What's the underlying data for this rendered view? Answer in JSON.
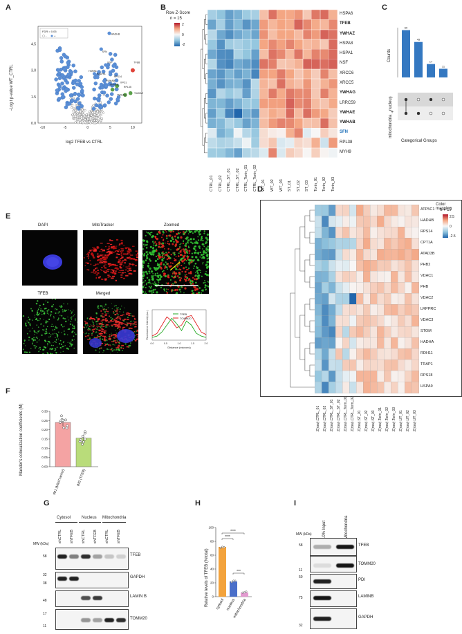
{
  "panels": {
    "A": {
      "letter": "A",
      "xlabel": "log2 TFEB vs CTRL",
      "ylabel": "-Log t p-value WT_CTRL",
      "legend_title": "FDR = 0.05",
      "legend_minus": "-",
      "legend_plus": "+",
      "xticks": [
        "-10",
        "-5",
        "0",
        "5",
        "10"
      ],
      "yticks": [
        "0.0",
        "1.5",
        "3.0",
        "4.5"
      ],
      "labels": [
        "HADHB",
        "SFN",
        "NSF",
        "TFEB",
        "HSPA8",
        "HADHA",
        "RPS14",
        "YWHAB",
        "YWHAE",
        "XPO1",
        "RPL35",
        "YWHAZ",
        "YWHAG"
      ]
    },
    "B": {
      "letter": "B",
      "legend_title": "Row Z-Score",
      "legend_n": "n = 15",
      "legend_ticks": [
        "2",
        "0",
        "-2"
      ],
      "genes": [
        {
          "name": "HSPA6",
          "style": "normal"
        },
        {
          "name": "TFEB",
          "style": "bold"
        },
        {
          "name": "YWHAZ",
          "style": "bold"
        },
        {
          "name": "HSPA8",
          "style": "normal"
        },
        {
          "name": "HSPA1",
          "style": "normal"
        },
        {
          "name": "NSF",
          "style": "normal"
        },
        {
          "name": "XRCC6",
          "style": "normal"
        },
        {
          "name": "XRCC5",
          "style": "normal"
        },
        {
          "name": "YWHAG",
          "style": "bold"
        },
        {
          "name": "LRRC59",
          "style": "normal"
        },
        {
          "name": "YWHAE",
          "style": "bold"
        },
        {
          "name": "YWHAB",
          "style": "bold"
        },
        {
          "name": "SFN",
          "style": "blue"
        },
        {
          "name": "RPL38",
          "style": "normal"
        },
        {
          "name": "MYH9",
          "style": "normal"
        }
      ],
      "columns": [
        "CTRL_01",
        "CTRL_02",
        "CTRL_ST_01",
        "CTRL_ST_02",
        "CTRL_Torin_01",
        "CTRL_Torin_02",
        "WT_01",
        "WT_02",
        "WT_03",
        "ST_01",
        "ST_02",
        "ST_03",
        "Torin_01",
        "Torin_02",
        "Torin_03"
      ]
    },
    "C": {
      "letter": "C",
      "ylabel": "Counts",
      "xlabel": "Categorical Groups",
      "bars": [
        {
          "label": "60",
          "value": 60
        },
        {
          "label": "45",
          "value": 45
        },
        {
          "label": "17",
          "value": 17
        },
        {
          "label": "11",
          "value": 11
        }
      ],
      "set_labels": [
        "nucleus",
        "mitochondria"
      ],
      "minus_sign": "-",
      "plus_sign": "+"
    },
    "D": {
      "letter": "D",
      "legend_title": "Color mapping",
      "legend_n": "n = 17",
      "legend_ticks": [
        "2.5",
        "0",
        "-2.5"
      ],
      "genes": [
        "ATP5C1",
        "HADHB",
        "RPS14",
        "CPT1A",
        "ATAD3B",
        "PHB2",
        "VDAC1",
        "PHB",
        "VDAC2",
        "LRPPRC",
        "VDAC3",
        "STOM",
        "HADHA",
        "RDH11",
        "TRAP1",
        "RPS18",
        "HSPA9"
      ],
      "columns": [
        "Z(row).CTRL_01",
        "Z(row).CTRL_02",
        "Z(row).CTRL_ST_01",
        "Z(row).CTRL_ST_02",
        "Z(row).CTRL_Torin_01",
        "Z(row).CTRL_Torin_02",
        "Z(row).ST_01",
        "Z(row).ST_02",
        "Z(row).ST_03",
        "Z(row).Torin_01",
        "Z(row).Torin_02",
        "Z(row).Torin_03",
        "Z(row).UT_01",
        "Z(row).UT_02",
        "Z(row).UT_03"
      ]
    },
    "E": {
      "letter": "E",
      "titles": [
        "DAPI",
        "MitoTracker",
        "Zoomed",
        "TFEB",
        "Merged"
      ],
      "plot_xlabel": "Distance (microns)",
      "plot_ylabel": "Fluorescence Intensity (a.u.)",
      "legend": [
        "TFEB",
        "TOMM20"
      ],
      "xticks": [
        "0.0",
        "0.5",
        "1.0",
        "1.5",
        "2.0"
      ]
    },
    "F": {
      "letter": "F",
      "ylabel": "Mander's colocalization coefficients (M)",
      "bars": [
        {
          "label": "tM1 (MitoTracker)",
          "value": 0.24,
          "color": "#f4a3a3"
        },
        {
          "label": "tM2 (TFEB)",
          "value": 0.155,
          "color": "#b9dc7a"
        }
      ],
      "yticks": [
        "0.00",
        "0.05",
        "0.10",
        "0.15",
        "0.20",
        "0.25",
        "0.30"
      ]
    },
    "G": {
      "letter": "G",
      "mw_label": "MW (kDa)",
      "groups": [
        "Cytosol",
        "Nucleus",
        "Mitochondria"
      ],
      "lanes": [
        "shCTRL",
        "shTFEB",
        "shCTRL",
        "shTFEB",
        "shCTRL",
        "shTFEB"
      ],
      "rows": [
        {
          "name": "TFEB",
          "mw": [
            "58"
          ]
        },
        {
          "name": "GAPDH",
          "mw": [
            "32",
            "38"
          ]
        },
        {
          "name": "LAMIN B",
          "mw": [
            "48"
          ]
        },
        {
          "name": "TOMM20",
          "mw": [
            "17",
            "11"
          ]
        }
      ]
    },
    "H": {
      "letter": "H",
      "ylabel": "Relative levels of TFEB (%total)",
      "bars": [
        {
          "label": "cytosol",
          "value": 72,
          "color": "#f3a33c"
        },
        {
          "label": "nucleus",
          "value": 22,
          "color": "#4a6fc9"
        },
        {
          "label": "mitochondria",
          "value": 6,
          "color": "#e39ad0"
        }
      ],
      "yticks": [
        "0",
        "20",
        "40",
        "60",
        "80",
        "100"
      ],
      "sig": [
        "****",
        "****",
        "***"
      ]
    },
    "I": {
      "letter": "I",
      "mw_label": "MW (kDa)",
      "lanes": [
        "10% Input",
        "Mitochondria"
      ],
      "rows": [
        {
          "name": "TFEB",
          "mw": [
            "58"
          ]
        },
        {
          "name": "TOMM20",
          "mw": [
            "11"
          ]
        },
        {
          "name": "PDI",
          "mw": [
            "50"
          ]
        },
        {
          "name": "LAMINB",
          "mw": [
            "75"
          ]
        },
        {
          "name": "GAPDH",
          "mw": [
            "32"
          ]
        }
      ]
    }
  },
  "chart_data": [
    {
      "type": "scatter",
      "title": "",
      "xlabel": "log2 TFEB vs CTRL",
      "ylabel": "-Log t p-value WT_CTRL",
      "xlim": [
        -11,
        12
      ],
      "ylim": [
        0,
        5.5
      ],
      "series": [
        {
          "name": "+",
          "color": "#5b8fd6",
          "values": "significant proteins"
        },
        {
          "name": "-",
          "color": "#cccccc",
          "values": "non-significant proteins"
        }
      ]
    },
    {
      "type": "bar",
      "categories": [
        "nucleus+mitochondria",
        "mitochondria",
        "nucleus",
        "none"
      ],
      "values": [
        60,
        45,
        17,
        11
      ],
      "ylabel": "Counts",
      "xlabel": "Categorical Groups",
      "ylim": [
        0,
        60
      ]
    },
    {
      "type": "bar",
      "categories": [
        "tM1 (MitoTracker)",
        "tM2 (TFEB)"
      ],
      "values": [
        0.24,
        0.155
      ],
      "ylabel": "Mander's colocalization coefficients (M)",
      "ylim": [
        0,
        0.3
      ]
    },
    {
      "type": "bar",
      "categories": [
        "cytosol",
        "nucleus",
        "mitochondria"
      ],
      "values": [
        72,
        22,
        6
      ],
      "ylabel": "Relative levels of TFEB (%total)",
      "ylim": [
        0,
        100
      ]
    }
  ]
}
